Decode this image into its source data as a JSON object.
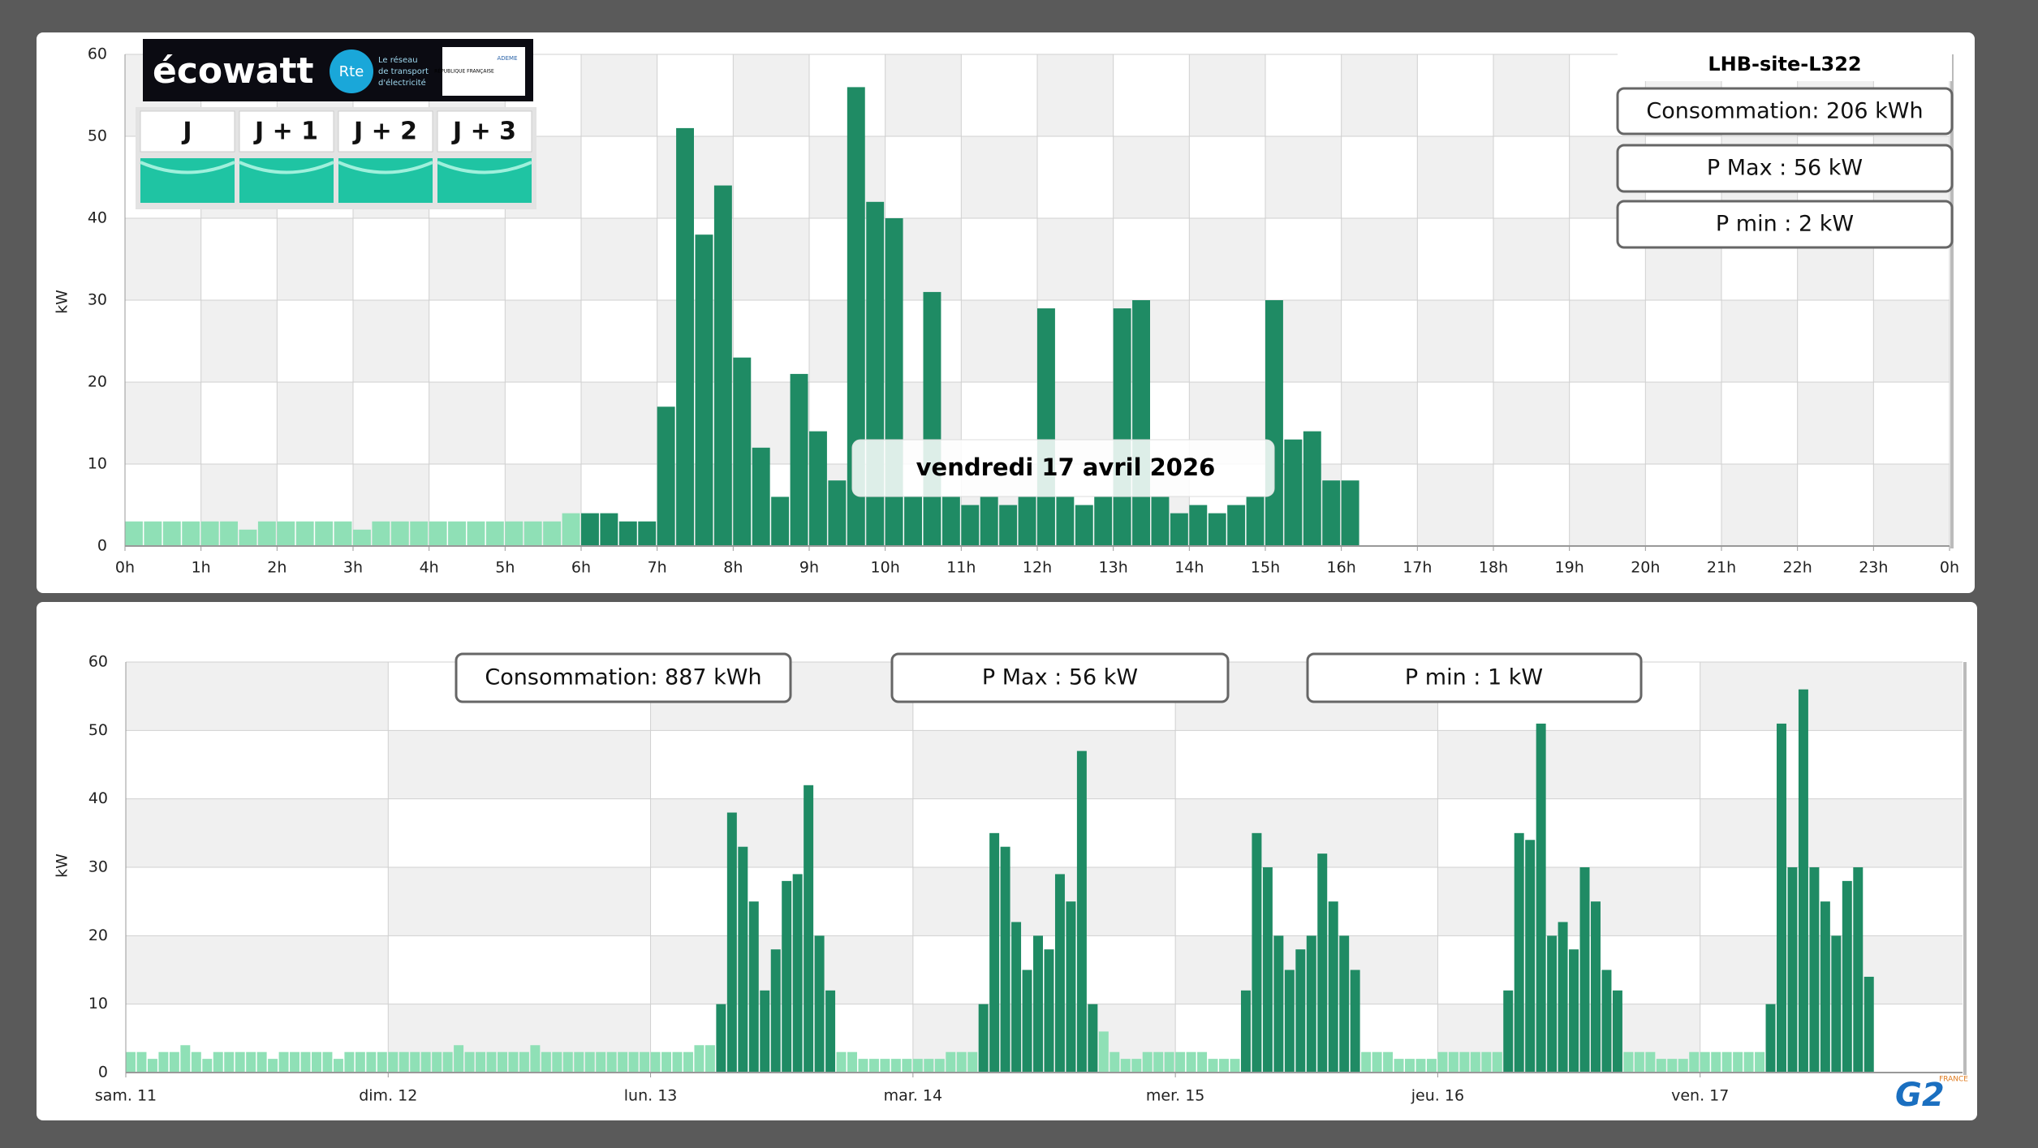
{
  "chart_data": [
    {
      "type": "bar",
      "title": "LHB-site-L322",
      "ylabel": "kW",
      "annotations": [
        "Consommation: 206 kWh",
        "P Max :  56 kW",
        "P min : 2 kW"
      ],
      "tooltip": "vendredi 17 avril 2026",
      "x": [
        0,
        0.25,
        0.5,
        0.75,
        1,
        1.25,
        1.5,
        1.75,
        2,
        2.25,
        2.5,
        2.75,
        3,
        3.25,
        3.5,
        3.75,
        4,
        4.25,
        4.5,
        4.75,
        5,
        5.25,
        5.5,
        5.75,
        6,
        6.25,
        6.5,
        6.75,
        7,
        7.25,
        7.5,
        7.75,
        8,
        8.25,
        8.5,
        8.75,
        9,
        9.25,
        9.5,
        9.75,
        10,
        10.25,
        10.5,
        10.75,
        11,
        11.25,
        11.5,
        11.75,
        12,
        12.25,
        12.5,
        12.75,
        13,
        13.25,
        13.5,
        13.75,
        14,
        14.25,
        14.5,
        14.75,
        15,
        15.25,
        15.5,
        15.75,
        16
      ],
      "series": [
        {
          "color": "#8fe0b6",
          "values": [
            3,
            3,
            3,
            3,
            3,
            3,
            2,
            3,
            3,
            3,
            3,
            3,
            2,
            3,
            3,
            3,
            3,
            3,
            3,
            3,
            3,
            3,
            3,
            4,
            null,
            null,
            null,
            null,
            null,
            null,
            null,
            null,
            null,
            null,
            null,
            null,
            null,
            null,
            null,
            null,
            null,
            null,
            null,
            null,
            null,
            null,
            null,
            null,
            null,
            null,
            null,
            null,
            null,
            null,
            null,
            null,
            null,
            null,
            null,
            null,
            null,
            null,
            null,
            null,
            null
          ]
        },
        {
          "color": "#1f8b64",
          "values": [
            null,
            null,
            null,
            null,
            null,
            null,
            null,
            null,
            null,
            null,
            null,
            null,
            null,
            null,
            null,
            null,
            null,
            null,
            null,
            null,
            null,
            null,
            null,
            null,
            4,
            4,
            3,
            3,
            17,
            51,
            38,
            44,
            23,
            12,
            6,
            21,
            14,
            8,
            56,
            42,
            40,
            6,
            31,
            6,
            5,
            6,
            5,
            6,
            29,
            6,
            5,
            6,
            29,
            30,
            6,
            4,
            5,
            4,
            5,
            6,
            30,
            13,
            14,
            8,
            8
          ]
        }
      ],
      "xlim": [
        0,
        24
      ],
      "xticks": [
        {
          "value": 0,
          "label": "0h"
        },
        {
          "value": 1,
          "label": "1h"
        },
        {
          "value": 2,
          "label": "2h"
        },
        {
          "value": 3,
          "label": "3h"
        },
        {
          "value": 4,
          "label": "4h"
        },
        {
          "value": 5,
          "label": "5h"
        },
        {
          "value": 6,
          "label": "6h"
        },
        {
          "value": 7,
          "label": "7h"
        },
        {
          "value": 8,
          "label": "8h"
        },
        {
          "value": 9,
          "label": "9h"
        },
        {
          "value": 10,
          "label": "10h"
        },
        {
          "value": 11,
          "label": "11h"
        },
        {
          "value": 12,
          "label": "12h"
        },
        {
          "value": 13,
          "label": "13h"
        },
        {
          "value": 14,
          "label": "14h"
        },
        {
          "value": 15,
          "label": "15h"
        },
        {
          "value": 16,
          "label": "16h"
        },
        {
          "value": 17,
          "label": "17h"
        },
        {
          "value": 18,
          "label": "18h"
        },
        {
          "value": 19,
          "label": "19h"
        },
        {
          "value": 20,
          "label": "20h"
        },
        {
          "value": 21,
          "label": "21h"
        },
        {
          "value": 22,
          "label": "22h"
        },
        {
          "value": 23,
          "label": "23h"
        },
        {
          "value": 24,
          "label": "0h"
        }
      ],
      "ylim": [
        0,
        60
      ],
      "yticks": [
        0,
        10,
        20,
        30,
        40,
        50,
        60
      ],
      "grid": true
    },
    {
      "type": "bar",
      "ylabel": "kW",
      "annotations": [
        "Consommation: 887 kWh",
        "P Max :  56 kW",
        "P min : 1 kW"
      ],
      "x": [
        0,
        1,
        2,
        3,
        4,
        5,
        6,
        7,
        8,
        9,
        10,
        11,
        12,
        13,
        14,
        15,
        16,
        17,
        18,
        19,
        20,
        21,
        22,
        23,
        24,
        25,
        26,
        27,
        28,
        29,
        30,
        31,
        32,
        33,
        34,
        35,
        36,
        37,
        38,
        39,
        40,
        41,
        42,
        43,
        44,
        45,
        46,
        47,
        48,
        49,
        50,
        51,
        52,
        53,
        54,
        55,
        56,
        57,
        58,
        59,
        60,
        61,
        62,
        63,
        64,
        65,
        66,
        67,
        68,
        69,
        70,
        71,
        72,
        73,
        74,
        75,
        76,
        77,
        78,
        79,
        80,
        81,
        82,
        83,
        84,
        85,
        86,
        87,
        88,
        89,
        90,
        91,
        92,
        93,
        94,
        95,
        96,
        97,
        98,
        99,
        100,
        101,
        102,
        103,
        104,
        105,
        106,
        107,
        108,
        109,
        110,
        111,
        112,
        113,
        114,
        115,
        116,
        117,
        118,
        119,
        120,
        121,
        122,
        123,
        124,
        125,
        126,
        127,
        128,
        129,
        130,
        131,
        132,
        133,
        134,
        135,
        136,
        137,
        138,
        139,
        140,
        141,
        142,
        143,
        144,
        145,
        146,
        147,
        148,
        149,
        150,
        151,
        152,
        153,
        154,
        155,
        156,
        157,
        158,
        159
      ],
      "series": [
        {
          "color": "#8fe0b6",
          "values": [
            3,
            3,
            2,
            3,
            3,
            4,
            3,
            2,
            3,
            3,
            3,
            3,
            3,
            2,
            3,
            3,
            3,
            3,
            3,
            2,
            3,
            3,
            3,
            3,
            3,
            3,
            3,
            3,
            3,
            3,
            4,
            3,
            3,
            3,
            3,
            3,
            3,
            4,
            3,
            3,
            3,
            3,
            3,
            3,
            3,
            3,
            3,
            3,
            3,
            3,
            3,
            3,
            4,
            4,
            null,
            null,
            null,
            null,
            null,
            null,
            null,
            null,
            null,
            null,
            null,
            3,
            3,
            2,
            2,
            2,
            2,
            2,
            2,
            2,
            2,
            3,
            3,
            3,
            null,
            null,
            null,
            null,
            null,
            null,
            null,
            null,
            null,
            null,
            null,
            6,
            3,
            2,
            2,
            3,
            3,
            3,
            3,
            3,
            3,
            2,
            2,
            2,
            null,
            null,
            null,
            null,
            null,
            null,
            null,
            null,
            null,
            null,
            null,
            3,
            3,
            3,
            2,
            2,
            2,
            2,
            3,
            3,
            3,
            3,
            3,
            3,
            null,
            null,
            null,
            null,
            null,
            null,
            null,
            null,
            null,
            null,
            null,
            3,
            3,
            3,
            2,
            2,
            2,
            3,
            3,
            3,
            3,
            3,
            3,
            3,
            null,
            null,
            null,
            null,
            null,
            null,
            null,
            null,
            null,
            null
          ]
        },
        {
          "color": "#1f8b64",
          "values": [
            null,
            null,
            null,
            null,
            null,
            null,
            null,
            null,
            null,
            null,
            null,
            null,
            null,
            null,
            null,
            null,
            null,
            null,
            null,
            null,
            null,
            null,
            null,
            null,
            null,
            null,
            null,
            null,
            null,
            null,
            null,
            null,
            null,
            null,
            null,
            null,
            null,
            null,
            null,
            null,
            null,
            null,
            null,
            null,
            null,
            null,
            null,
            null,
            null,
            null,
            null,
            null,
            null,
            null,
            10,
            38,
            33,
            25,
            12,
            18,
            28,
            29,
            42,
            20,
            12,
            null,
            null,
            null,
            null,
            null,
            null,
            null,
            null,
            null,
            null,
            null,
            null,
            null,
            10,
            35,
            33,
            22,
            15,
            20,
            18,
            29,
            25,
            47,
            10,
            null,
            null,
            null,
            null,
            null,
            null,
            null,
            null,
            null,
            null,
            null,
            null,
            null,
            12,
            35,
            30,
            20,
            15,
            18,
            20,
            32,
            25,
            20,
            15,
            null,
            null,
            null,
            null,
            null,
            null,
            null,
            null,
            null,
            null,
            null,
            null,
            null,
            12,
            35,
            34,
            51,
            20,
            22,
            18,
            30,
            25,
            15,
            12,
            null,
            null,
            null,
            null,
            null,
            null,
            null,
            null,
            null,
            null,
            null,
            null,
            null,
            10,
            51,
            30,
            56,
            30,
            25,
            20,
            28,
            30,
            14
          ]
        }
      ],
      "xlim": [
        0,
        168
      ],
      "xticks": [
        {
          "value": 0,
          "label": "sam. 11"
        },
        {
          "value": 24,
          "label": "dim. 12"
        },
        {
          "value": 48,
          "label": "lun. 13"
        },
        {
          "value": 72,
          "label": "mar. 14"
        },
        {
          "value": 96,
          "label": "mer. 15"
        },
        {
          "value": 120,
          "label": "jeu. 16"
        },
        {
          "value": 144,
          "label": "ven. 17"
        }
      ],
      "ylim": [
        0,
        60
      ],
      "yticks": [
        0,
        10,
        20,
        30,
        40,
        50,
        60
      ],
      "grid": true
    }
  ],
  "ecowatt": {
    "brand": "écowatt",
    "rte": "Rte",
    "rte_text": [
      "Le réseau",
      "de transport",
      "d'électricité"
    ],
    "gov": "RÉPUBLIQUE FRANÇAISE",
    "ademe": "ADEME",
    "days": [
      "J",
      "J + 1",
      "J + 2",
      "J + 3"
    ],
    "signal_color": "#1fc4a3"
  },
  "logo": {
    "name": "G2",
    "sub": "FRANCE"
  }
}
